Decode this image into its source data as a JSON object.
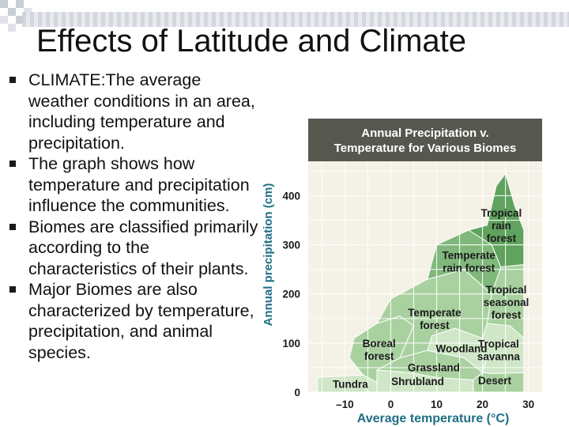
{
  "slide": {
    "title": "Effects of Latitude and Climate",
    "bullets": [
      "CLIMATE:The average weather conditions in an area, including temperature and precipitation.",
      "The graph shows how temperature and precipitation influence the communities.",
      "Biomes are classified primarily according to the characteristics of their plants.",
      "Major Biomes are also characterized by temperature, precipitation, and animal species."
    ]
  },
  "chart_data": {
    "type": "area",
    "title_lines": [
      "Annual Precipitation v.",
      "Temperature for Various Biomes"
    ],
    "xlabel": "Average temperature (°C)",
    "ylabel": "Annual precipitation (cm)",
    "xticks": [
      -10,
      0,
      10,
      20,
      30
    ],
    "xtick_labels": [
      "–10",
      "0",
      "10",
      "20",
      "30"
    ],
    "yticks": [
      0,
      100,
      200,
      300,
      400
    ],
    "xlim": [
      -18,
      33
    ],
    "ylim": [
      0,
      470
    ],
    "grid": true,
    "colors": {
      "title_band": "#56584f",
      "plot_bg": "#f4f1e6",
      "grid": "#ffffff",
      "biome_light": "#cfe6c7",
      "biome_mid": "#a9d1a0",
      "biome_dark": "#7fb87a",
      "biome_deep": "#5fa35e",
      "title_text": "#ffffff",
      "axis_text": "#1f6f86"
    },
    "biomes": [
      {
        "name": "Tundra",
        "label": [
          "Tundra"
        ],
        "polygon": [
          [
            -16,
            0
          ],
          [
            -3,
            0
          ],
          [
            -3,
            20
          ],
          [
            -6,
            35
          ],
          [
            -16,
            30
          ]
        ]
      },
      {
        "name": "Boreal forest",
        "label": [
          "Boreal",
          "forest"
        ],
        "polygon": [
          [
            -6,
            35
          ],
          [
            -3,
            20
          ],
          [
            -3,
            45
          ],
          [
            2,
            70
          ],
          [
            5,
            135
          ],
          [
            2,
            155
          ],
          [
            -3,
            140
          ],
          [
            -8,
            110
          ],
          [
            -9,
            70
          ]
        ]
      },
      {
        "name": "Shrubland",
        "label": [
          "Shrubland"
        ],
        "polygon": [
          [
            -3,
            0
          ],
          [
            18,
            0
          ],
          [
            18,
            25
          ],
          [
            10,
            30
          ],
          [
            4,
            40
          ],
          [
            -3,
            45
          ],
          [
            -3,
            20
          ]
        ]
      },
      {
        "name": "Grassland",
        "label": [
          "Grassland"
        ],
        "polygon": [
          [
            -3,
            45
          ],
          [
            4,
            40
          ],
          [
            10,
            30
          ],
          [
            18,
            25
          ],
          [
            20,
            40
          ],
          [
            16,
            70
          ],
          [
            8,
            85
          ],
          [
            2,
            70
          ]
        ]
      },
      {
        "name": "Woodland",
        "label": [
          "Woodland"
        ],
        "polygon": [
          [
            8,
            85
          ],
          [
            16,
            70
          ],
          [
            20,
            40
          ],
          [
            21,
            75
          ],
          [
            20,
            110
          ],
          [
            14,
            130
          ],
          [
            9,
            115
          ]
        ]
      },
      {
        "name": "Desert",
        "label": [
          "Desert"
        ],
        "polygon": [
          [
            18,
            0
          ],
          [
            29,
            0
          ],
          [
            29,
            40
          ],
          [
            22,
            38
          ],
          [
            20,
            40
          ],
          [
            18,
            25
          ]
        ]
      },
      {
        "name": "Tropical savanna",
        "label": [
          "Tropical",
          "savanna"
        ],
        "polygon": [
          [
            20,
            40
          ],
          [
            22,
            38
          ],
          [
            29,
            40
          ],
          [
            29,
            110
          ],
          [
            26,
            135
          ],
          [
            21,
            140
          ],
          [
            20,
            110
          ],
          [
            21,
            75
          ]
        ]
      },
      {
        "name": "Temperate forest",
        "label": [
          "Temperate",
          "forest"
        ],
        "polygon": [
          [
            -3,
            140
          ],
          [
            2,
            155
          ],
          [
            5,
            135
          ],
          [
            2,
            70
          ],
          [
            8,
            85
          ],
          [
            9,
            115
          ],
          [
            14,
            130
          ],
          [
            20,
            110
          ],
          [
            21,
            140
          ],
          [
            22,
            200
          ],
          [
            16,
            250
          ],
          [
            8,
            230
          ],
          [
            0,
            190
          ]
        ]
      },
      {
        "name": "Tropical seasonal forest",
        "label": [
          "Tropical",
          "seasonal",
          "forest"
        ],
        "polygon": [
          [
            21,
            140
          ],
          [
            26,
            135
          ],
          [
            29,
            110
          ],
          [
            29,
            260
          ],
          [
            24,
            255
          ],
          [
            22,
            200
          ]
        ]
      },
      {
        "name": "Temperate rain forest",
        "label": [
          "Temperate",
          "rain forest"
        ],
        "polygon": [
          [
            8,
            230
          ],
          [
            16,
            250
          ],
          [
            22,
            200
          ],
          [
            24,
            255
          ],
          [
            22,
            300
          ],
          [
            17,
            330
          ],
          [
            10,
            300
          ]
        ]
      },
      {
        "name": "Tropical rain forest",
        "label": [
          "Tropical",
          "rain",
          "forest"
        ],
        "polygon": [
          [
            22,
            300
          ],
          [
            24,
            255
          ],
          [
            29,
            260
          ],
          [
            29,
            330
          ],
          [
            27,
            380
          ],
          [
            25,
            445
          ],
          [
            23,
            420
          ],
          [
            21,
            340
          ],
          [
            17,
            330
          ]
        ]
      }
    ]
  }
}
